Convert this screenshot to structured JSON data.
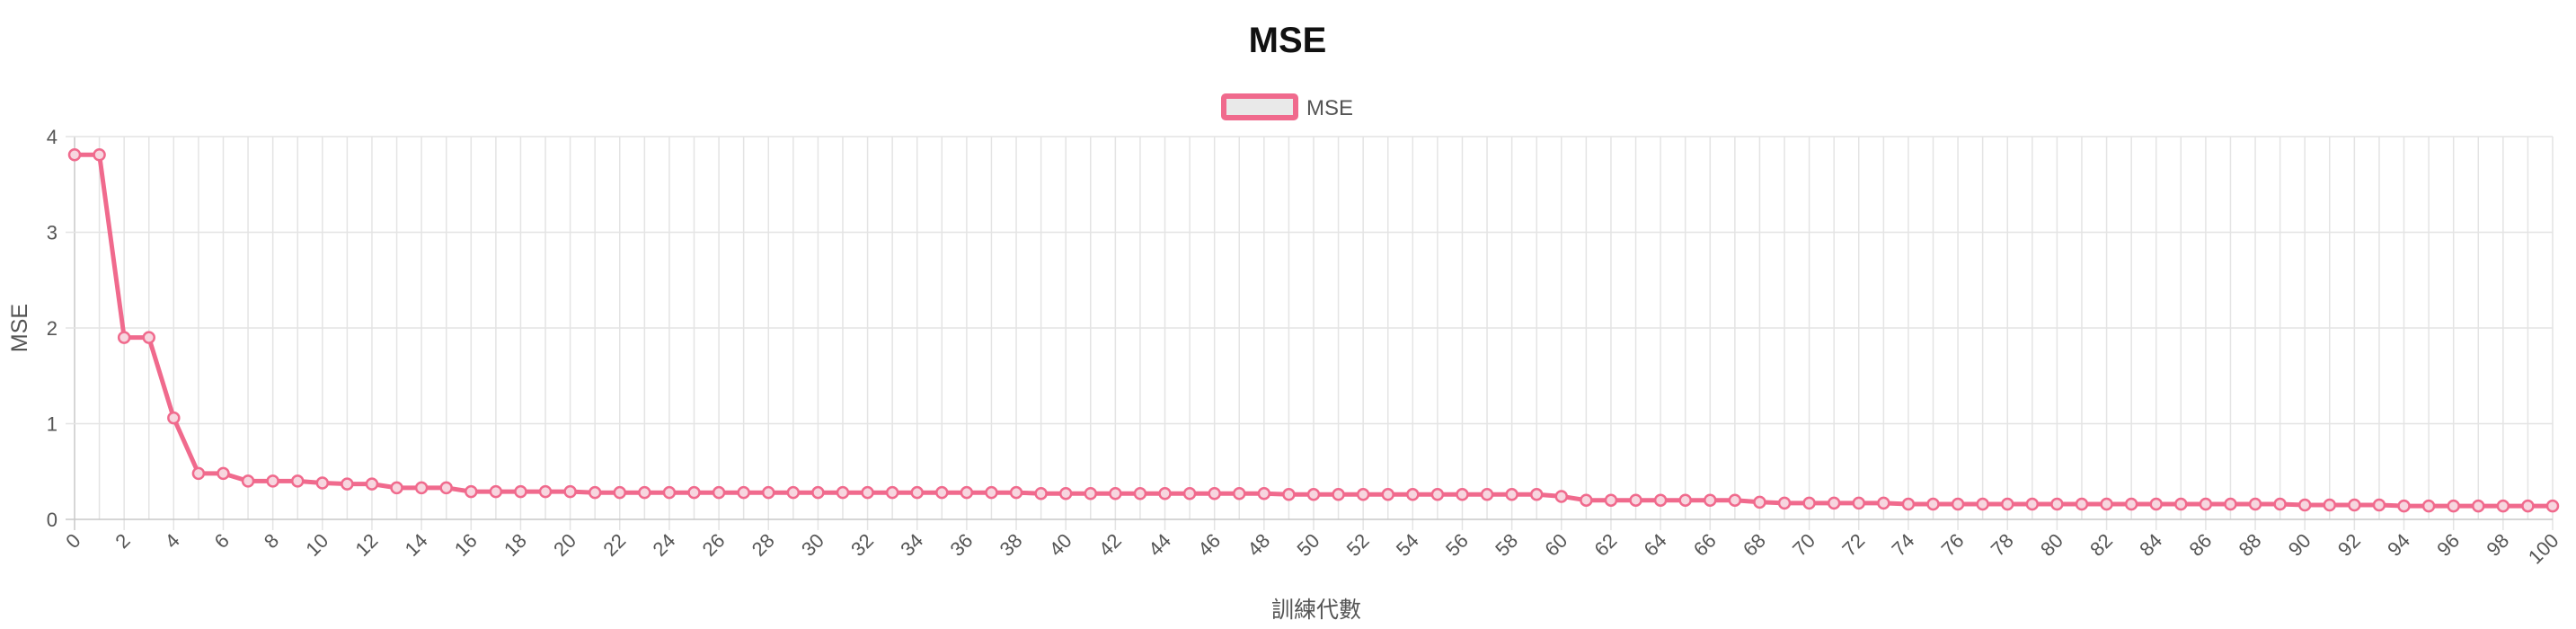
{
  "chart_data": {
    "type": "line",
    "title": "MSE",
    "xlabel": "訓練代數",
    "ylabel": "MSE",
    "legend": {
      "position": "top",
      "entries": [
        "MSE"
      ]
    },
    "grid": true,
    "xlim": [
      0,
      100
    ],
    "ylim": [
      0,
      4
    ],
    "x_ticks": [
      "0",
      "2",
      "4",
      "6",
      "8",
      "10",
      "12",
      "14",
      "16",
      "18",
      "20",
      "22",
      "24",
      "26",
      "28",
      "30",
      "32",
      "34",
      "36",
      "38",
      "40",
      "42",
      "44",
      "46",
      "48",
      "50",
      "52",
      "54",
      "56",
      "58",
      "60",
      "62",
      "64",
      "66",
      "68",
      "70",
      "72",
      "74",
      "76",
      "78",
      "80",
      "82",
      "84",
      "86",
      "88",
      "90",
      "92",
      "94",
      "96",
      "98",
      "100"
    ],
    "y_ticks": [
      "0",
      "1",
      "2",
      "3",
      "4"
    ],
    "series": [
      {
        "name": "MSE",
        "color": "#f06a8d",
        "x": [
          0,
          1,
          2,
          3,
          4,
          5,
          6,
          7,
          8,
          9,
          10,
          11,
          12,
          13,
          14,
          15,
          16,
          17,
          18,
          19,
          20,
          21,
          22,
          23,
          24,
          25,
          26,
          27,
          28,
          29,
          30,
          31,
          32,
          33,
          34,
          35,
          36,
          37,
          38,
          39,
          40,
          41,
          42,
          43,
          44,
          45,
          46,
          47,
          48,
          49,
          50,
          51,
          52,
          53,
          54,
          55,
          56,
          57,
          58,
          59,
          60,
          61,
          62,
          63,
          64,
          65,
          66,
          67,
          68,
          69,
          70,
          71,
          72,
          73,
          74,
          75,
          76,
          77,
          78,
          79,
          80,
          81,
          82,
          83,
          84,
          85,
          86,
          87,
          88,
          89,
          90,
          91,
          92,
          93,
          94,
          95,
          96,
          97,
          98,
          99,
          100
        ],
        "values": [
          3.81,
          3.81,
          1.9,
          1.9,
          1.06,
          0.48,
          0.48,
          0.4,
          0.4,
          0.4,
          0.38,
          0.37,
          0.37,
          0.33,
          0.33,
          0.33,
          0.29,
          0.29,
          0.29,
          0.29,
          0.29,
          0.28,
          0.28,
          0.28,
          0.28,
          0.28,
          0.28,
          0.28,
          0.28,
          0.28,
          0.28,
          0.28,
          0.28,
          0.28,
          0.28,
          0.28,
          0.28,
          0.28,
          0.28,
          0.27,
          0.27,
          0.27,
          0.27,
          0.27,
          0.27,
          0.27,
          0.27,
          0.27,
          0.27,
          0.26,
          0.26,
          0.26,
          0.26,
          0.26,
          0.26,
          0.26,
          0.26,
          0.26,
          0.26,
          0.26,
          0.24,
          0.2,
          0.2,
          0.2,
          0.2,
          0.2,
          0.2,
          0.2,
          0.18,
          0.17,
          0.17,
          0.17,
          0.17,
          0.17,
          0.16,
          0.16,
          0.16,
          0.16,
          0.16,
          0.16,
          0.16,
          0.16,
          0.16,
          0.16,
          0.16,
          0.16,
          0.16,
          0.16,
          0.16,
          0.16,
          0.15,
          0.15,
          0.15,
          0.15,
          0.14,
          0.14,
          0.14,
          0.14,
          0.14,
          0.14,
          0.14
        ]
      }
    ]
  }
}
